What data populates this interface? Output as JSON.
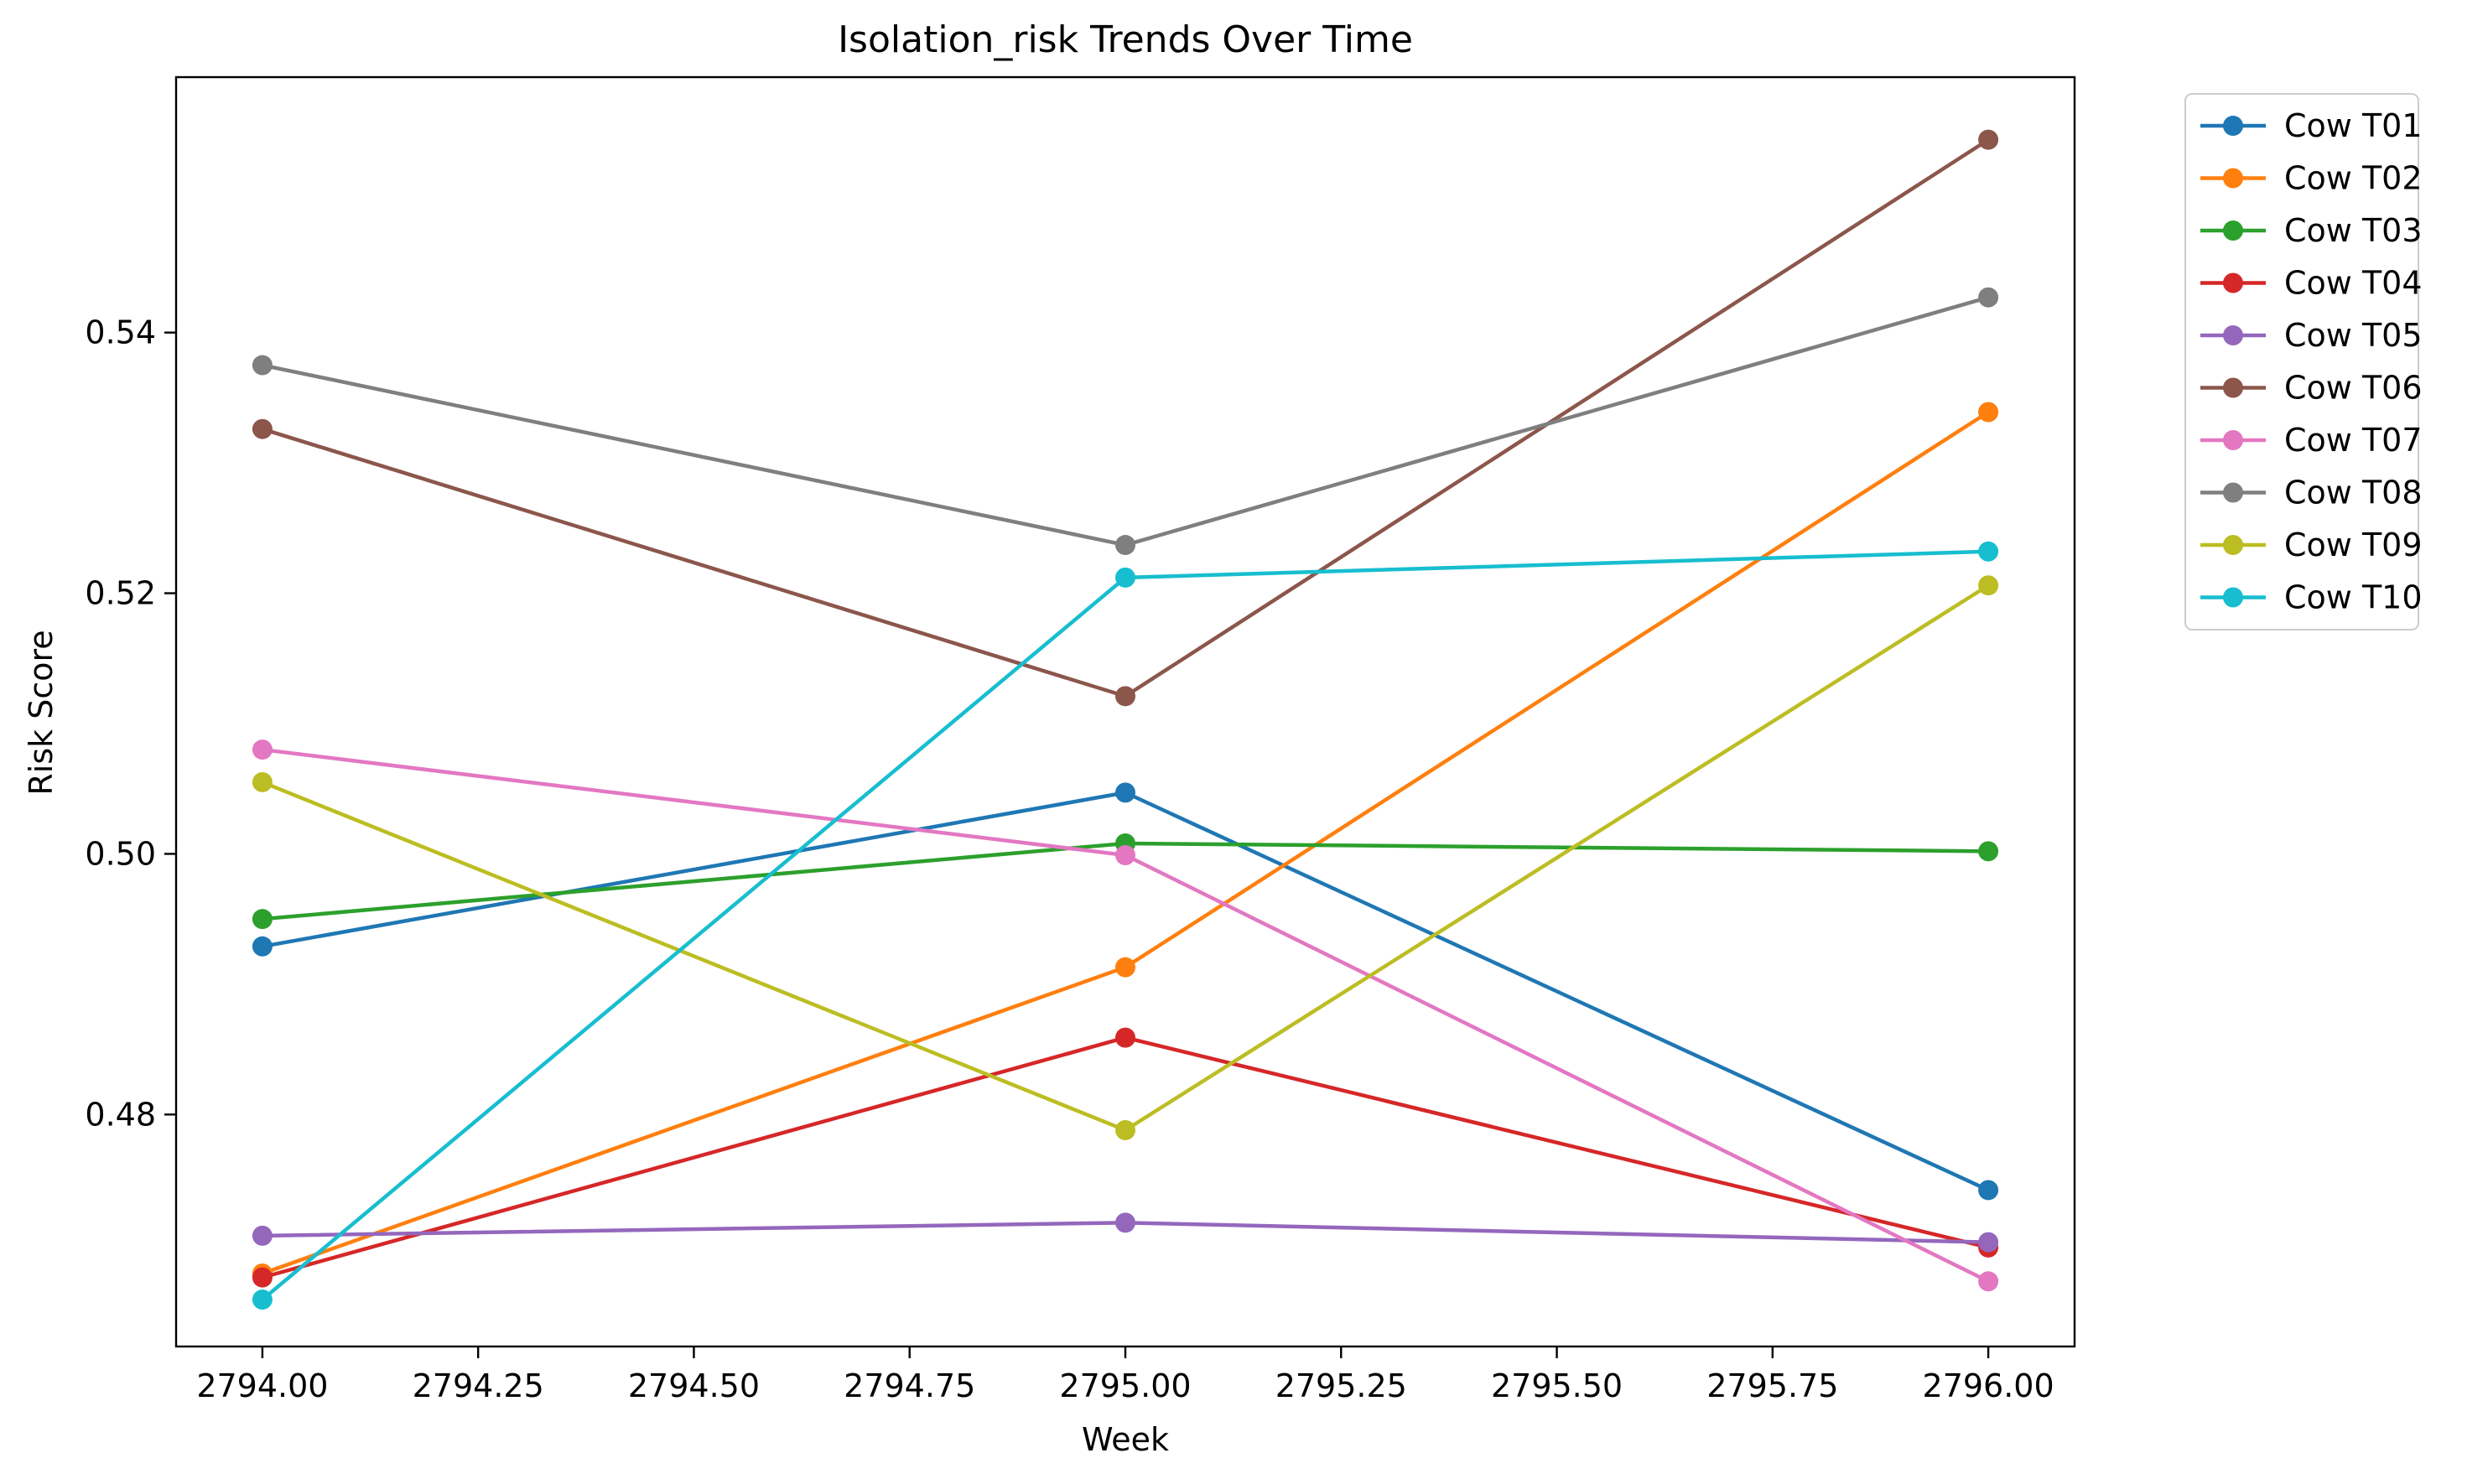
{
  "chart_data": {
    "type": "line",
    "title": "Isolation_risk Trends Over Time",
    "xlabel": "Week",
    "ylabel": "Risk Score",
    "x": [
      2794,
      2795,
      2796
    ],
    "xlim": [
      2793.9,
      2796.1
    ],
    "ylim": [
      0.4622,
      0.5596
    ],
    "x_ticks": [
      "2794.00",
      "2794.25",
      "2794.50",
      "2794.75",
      "2795.00",
      "2795.25",
      "2795.50",
      "2795.75",
      "2796.00"
    ],
    "y_ticks": [
      "0.48",
      "0.50",
      "0.52",
      "0.54"
    ],
    "grid": false,
    "legend_position": "outside-top-right",
    "series": [
      {
        "name": "Cow T01",
        "color": "#1f77b4",
        "values": [
          0.4929,
          0.5047,
          0.4742
        ]
      },
      {
        "name": "Cow T02",
        "color": "#ff7f0e",
        "values": [
          0.4678,
          0.4913,
          0.5339
        ]
      },
      {
        "name": "Cow T03",
        "color": "#2ca02c",
        "values": [
          0.495,
          0.5008,
          0.5002
        ]
      },
      {
        "name": "Cow T04",
        "color": "#d62728",
        "values": [
          0.4675,
          0.4859,
          0.4698
        ]
      },
      {
        "name": "Cow T05",
        "color": "#9467bd",
        "values": [
          0.4707,
          0.4717,
          0.4702
        ]
      },
      {
        "name": "Cow T06",
        "color": "#8c564b",
        "values": [
          0.5326,
          0.5121,
          0.5548
        ]
      },
      {
        "name": "Cow T07",
        "color": "#e377c2",
        "values": [
          0.508,
          0.4999,
          0.4672
        ]
      },
      {
        "name": "Cow T08",
        "color": "#7f7f7f",
        "values": [
          0.5375,
          0.5237,
          0.5427
        ]
      },
      {
        "name": "Cow T09",
        "color": "#bcbd22",
        "values": [
          0.5055,
          0.4788,
          0.5206
        ]
      },
      {
        "name": "Cow T10",
        "color": "#17becf",
        "values": [
          0.4658,
          0.5212,
          0.5232
        ]
      }
    ]
  }
}
